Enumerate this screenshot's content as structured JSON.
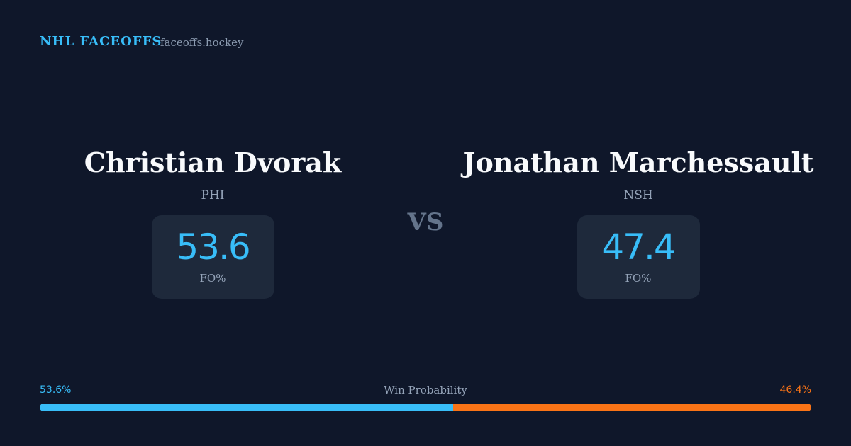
{
  "header": {
    "brand": "NHL FACEOFFS",
    "site": "faceoffs.hockey"
  },
  "players": [
    {
      "name": "Christian Dvorak",
      "team": "PHI",
      "fo_value": 53.6,
      "fo_label": "FO%"
    },
    {
      "name": "Jonathan Marchessault",
      "team": "NSH",
      "fo_value": 47.4,
      "fo_label": "FO%"
    }
  ],
  "vs": "VS",
  "probability": {
    "title": "Win Probability",
    "left": {
      "value": 53.6,
      "label": "53.6%",
      "color": "#38bdf8"
    },
    "right": {
      "value": 46.4,
      "label": "46.4%",
      "color": "#f97316"
    }
  }
}
